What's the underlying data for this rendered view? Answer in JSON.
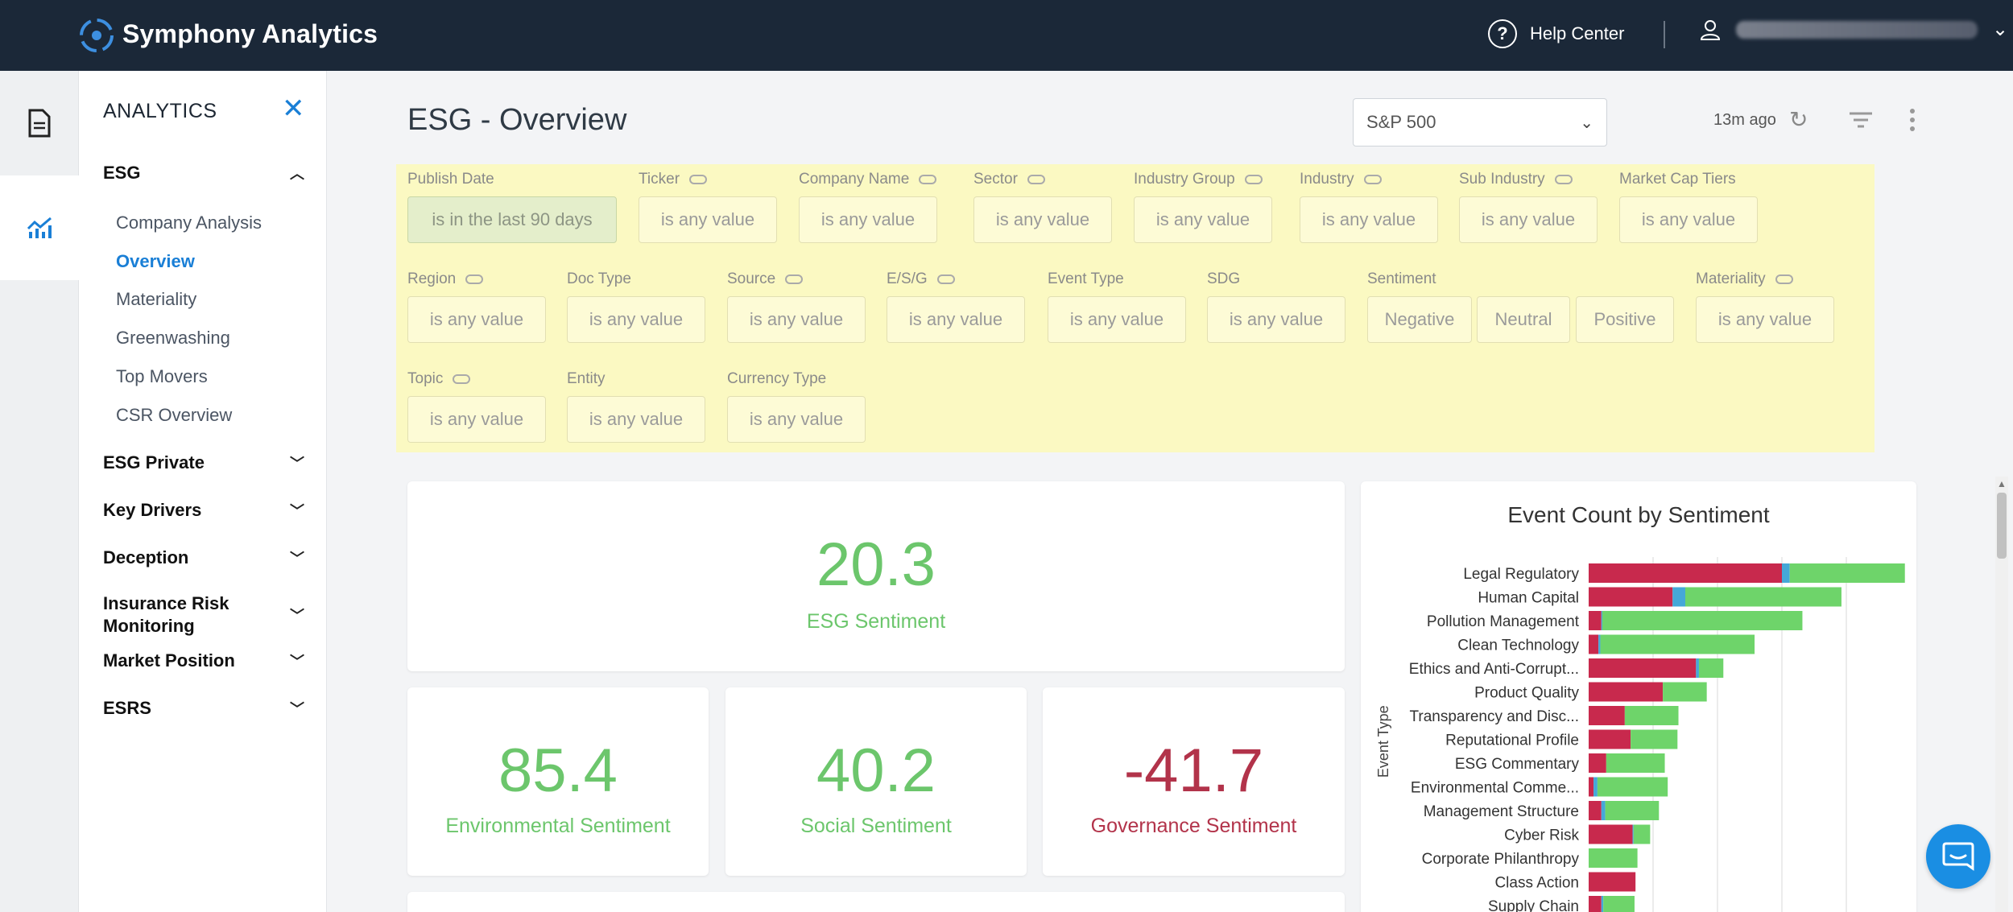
{
  "app": {
    "name": "Symphony Analytics"
  },
  "header": {
    "help_label": "Help Center"
  },
  "nav": {
    "title": "ANALYTICS",
    "sections": [
      {
        "label": "ESG",
        "expanded": true,
        "items": [
          "Company Analysis",
          "Overview",
          "Materiality",
          "Greenwashing",
          "Top Movers",
          "CSR Overview"
        ],
        "active_item": "Overview"
      },
      {
        "label": "ESG Private",
        "expanded": false
      },
      {
        "label": "Key Drivers",
        "expanded": false
      },
      {
        "label": "Deception",
        "expanded": false
      },
      {
        "label": "Insurance Risk Monitoring",
        "line1": "Insurance Risk",
        "line2": "Monitoring",
        "expanded": false
      },
      {
        "label": "Market Position",
        "expanded": false
      },
      {
        "label": "ESRS",
        "expanded": false
      }
    ]
  },
  "page": {
    "title": "ESG - Overview",
    "index_select": "S&P 500",
    "updated": "13m ago"
  },
  "filters": [
    {
      "label": "Publish Date",
      "value": "is in the last 90 days",
      "link": false,
      "selected": true
    },
    {
      "label": "Ticker",
      "value": "is any value",
      "link": true
    },
    {
      "label": "Company Name",
      "value": "is any value",
      "link": true
    },
    {
      "label": "Sector",
      "value": "is any value",
      "link": true
    },
    {
      "label": "Industry Group",
      "value": "is any value",
      "link": true
    },
    {
      "label": "Industry",
      "value": "is any value",
      "link": true
    },
    {
      "label": "Sub Industry",
      "value": "is any value",
      "link": true
    },
    {
      "label": "Market Cap Tiers",
      "value": "is any value",
      "link": false
    },
    {
      "label": "Region",
      "value": "is any value",
      "link": true
    },
    {
      "label": "Doc Type",
      "value": "is any value",
      "link": false
    },
    {
      "label": "Source",
      "value": "is any value",
      "link": true
    },
    {
      "label": "E/S/G",
      "value": "is any value",
      "link": true
    },
    {
      "label": "Event Type",
      "value": "is any value",
      "link": false
    },
    {
      "label": "SDG",
      "value": "is any value",
      "link": false
    },
    {
      "label": "Sentiment",
      "options": [
        "Negative",
        "Neutral",
        "Positive"
      ],
      "link": false
    },
    {
      "label": "Materiality",
      "value": "is any value",
      "link": true
    },
    {
      "label": "Topic",
      "value": "is any value",
      "link": true
    },
    {
      "label": "Entity",
      "value": "is any value",
      "link": false
    },
    {
      "label": "Currency Type",
      "value": "is any value",
      "link": false
    }
  ],
  "kpis": {
    "esg": {
      "value": "20.3",
      "label": "ESG Sentiment",
      "color": "#6cc66c"
    },
    "environmental": {
      "value": "85.4",
      "label": "Environmental Sentiment",
      "color": "#6cc66c"
    },
    "social": {
      "value": "40.2",
      "label": "Social Sentiment",
      "color": "#6cc66c"
    },
    "governance": {
      "value": "-41.7",
      "label": "Governance Sentiment",
      "color": "#b2334a"
    }
  },
  "chart_data": {
    "type": "bar",
    "orientation": "horizontal",
    "stacked": true,
    "title": "Event Count by Sentiment",
    "ylabel": "Event Type",
    "xlabel": "",
    "grid": true,
    "categories": [
      "Legal Regulatory",
      "Human Capital",
      "Pollution Management",
      "Clean Technology",
      "Ethics and Anti-Corrupt...",
      "Product Quality",
      "Transparency and Disc...",
      "Reputational Profile",
      "ESG Commentary",
      "Environmental Comme...",
      "Management Structure",
      "Cyber Risk",
      "Corporate Philanthropy",
      "Class Action",
      "Supply Chain"
    ],
    "series": [
      {
        "color": "#c8294d",
        "values": [
          198,
          86,
          13,
          10,
          110,
          76,
          37,
          43,
          18,
          5,
          13,
          45,
          0,
          48,
          13
        ]
      },
      {
        "color": "#45a8d8",
        "values": [
          8,
          13,
          1,
          2,
          3,
          0,
          0,
          0,
          0,
          4,
          4,
          1,
          0,
          0,
          2
        ]
      },
      {
        "color": "#6ed46a",
        "values": [
          118,
          160,
          205,
          158,
          25,
          45,
          55,
          48,
          60,
          72,
          55,
          17,
          50,
          0,
          32
        ]
      }
    ],
    "xlim": [
      0,
      330
    ]
  }
}
